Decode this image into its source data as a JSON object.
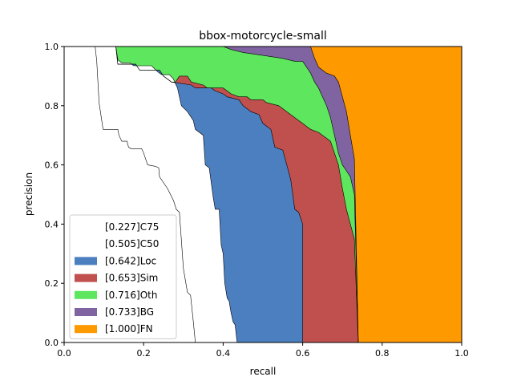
{
  "chart_data": {
    "type": "area",
    "title": "bbox-motorcycle-small",
    "xlabel": "recall",
    "ylabel": "precision",
    "xlim": [
      0,
      1
    ],
    "ylim": [
      0,
      1
    ],
    "xticks": [
      "0.0",
      "0.2",
      "0.4",
      "0.6",
      "0.8",
      "1.0"
    ],
    "yticks": [
      "0.0",
      "0.2",
      "0.4",
      "0.6",
      "0.8",
      "1.0"
    ],
    "grid": false,
    "legend_position": "lower-left",
    "series": [
      {
        "name": "[0.227]C75",
        "color": "#ffffff",
        "points": [
          [
            0,
            1
          ],
          [
            0.078,
            1
          ],
          [
            0.082,
            0.95
          ],
          [
            0.088,
            0.81
          ],
          [
            0.098,
            0.72
          ],
          [
            0.135,
            0.72
          ],
          [
            0.138,
            0.7
          ],
          [
            0.145,
            0.68
          ],
          [
            0.158,
            0.68
          ],
          [
            0.162,
            0.66
          ],
          [
            0.168,
            0.655
          ],
          [
            0.195,
            0.655
          ],
          [
            0.2,
            0.64
          ],
          [
            0.21,
            0.6
          ],
          [
            0.23,
            0.595
          ],
          [
            0.238,
            0.59
          ],
          [
            0.24,
            0.56
          ],
          [
            0.26,
            0.52
          ],
          [
            0.275,
            0.48
          ],
          [
            0.282,
            0.45
          ],
          [
            0.29,
            0.44
          ],
          [
            0.3,
            0.25
          ],
          [
            0.31,
            0.17
          ],
          [
            0.318,
            0.16
          ],
          [
            0.325,
            0.07
          ],
          [
            0.33,
            0
          ]
        ]
      },
      {
        "name": "[0.505]C50",
        "color": "#ffffff",
        "points": [
          [
            0,
            1
          ],
          [
            0.13,
            1
          ],
          [
            0.135,
            0.955
          ],
          [
            0.145,
            0.945
          ],
          [
            0.165,
            0.945
          ],
          [
            0.175,
            0.935
          ],
          [
            0.22,
            0.935
          ],
          [
            0.235,
            0.915
          ],
          [
            0.245,
            0.905
          ],
          [
            0.265,
            0.905
          ],
          [
            0.275,
            0.89
          ],
          [
            0.285,
            0.86
          ],
          [
            0.295,
            0.8
          ],
          [
            0.31,
            0.78
          ],
          [
            0.325,
            0.75
          ],
          [
            0.33,
            0.72
          ],
          [
            0.35,
            0.7
          ],
          [
            0.355,
            0.6
          ],
          [
            0.365,
            0.59
          ],
          [
            0.375,
            0.49
          ],
          [
            0.38,
            0.45
          ],
          [
            0.39,
            0.45
          ],
          [
            0.395,
            0.33
          ],
          [
            0.4,
            0.3
          ],
          [
            0.404,
            0.2
          ],
          [
            0.41,
            0.15
          ],
          [
            0.415,
            0.14
          ],
          [
            0.42,
            0.1
          ],
          [
            0.425,
            0.07
          ],
          [
            0.43,
            0.06
          ],
          [
            0.435,
            0
          ],
          [
            0.6,
            0
          ]
        ]
      },
      {
        "name": "[0.642]Loc",
        "color": "#4c7fbf",
        "points": [
          [
            0,
            1
          ],
          [
            0.13,
            1
          ],
          [
            0.135,
            0.94
          ],
          [
            0.18,
            0.94
          ],
          [
            0.19,
            0.92
          ],
          [
            0.24,
            0.92
          ],
          [
            0.25,
            0.9
          ],
          [
            0.27,
            0.88
          ],
          [
            0.32,
            0.87
          ],
          [
            0.33,
            0.86
          ],
          [
            0.37,
            0.86
          ],
          [
            0.38,
            0.85
          ],
          [
            0.4,
            0.84
          ],
          [
            0.41,
            0.83
          ],
          [
            0.44,
            0.82
          ],
          [
            0.45,
            0.8
          ],
          [
            0.47,
            0.78
          ],
          [
            0.49,
            0.77
          ],
          [
            0.5,
            0.74
          ],
          [
            0.52,
            0.72
          ],
          [
            0.53,
            0.66
          ],
          [
            0.55,
            0.65
          ],
          [
            0.56,
            0.6
          ],
          [
            0.57,
            0.55
          ],
          [
            0.58,
            0.45
          ],
          [
            0.59,
            0.44
          ],
          [
            0.6,
            0.4
          ],
          [
            0.6,
            0
          ]
        ]
      },
      {
        "name": "[0.653]Sim",
        "color": "#c0504d",
        "points": [
          [
            0,
            1
          ],
          [
            0.13,
            1
          ],
          [
            0.135,
            0.94
          ],
          [
            0.18,
            0.94
          ],
          [
            0.19,
            0.92
          ],
          [
            0.24,
            0.92
          ],
          [
            0.25,
            0.9
          ],
          [
            0.27,
            0.88
          ],
          [
            0.35,
            0.87
          ],
          [
            0.37,
            0.86
          ],
          [
            0.4,
            0.85
          ],
          [
            0.55,
            0.84
          ],
          [
            0.58,
            0.83
          ],
          [
            0.6,
            0.8
          ],
          [
            0.62,
            0.73
          ],
          [
            0.64,
            0.7
          ],
          [
            0.66,
            0.66
          ],
          [
            0.68,
            0.58
          ],
          [
            0.69,
            0.52
          ],
          [
            0.7,
            0.46
          ],
          [
            0.71,
            0.42
          ],
          [
            0.72,
            0.4
          ],
          [
            0.73,
            0.35
          ],
          [
            0.74,
            0
          ]
        ]
      },
      {
        "name": "[0.716]Oth",
        "color": "#5ee65e",
        "points": [
          [
            0,
            1
          ],
          [
            0.13,
            1
          ],
          [
            0.135,
            0.94
          ],
          [
            0.18,
            0.94
          ],
          [
            0.19,
            0.92
          ],
          [
            0.24,
            0.92
          ],
          [
            0.25,
            0.9
          ],
          [
            0.27,
            0.88
          ],
          [
            0.35,
            0.87
          ],
          [
            0.37,
            0.86
          ],
          [
            0.4,
            0.85
          ],
          [
            0.55,
            0.84
          ],
          [
            0.58,
            0.83
          ],
          [
            0.6,
            0.8
          ],
          [
            0.62,
            0.73
          ],
          [
            0.64,
            0.7
          ],
          [
            0.66,
            0.66
          ],
          [
            0.68,
            0.58
          ],
          [
            0.69,
            0.52
          ],
          [
            0.7,
            0.46
          ],
          [
            0.71,
            0.42
          ],
          [
            0.72,
            0.4
          ],
          [
            0.73,
            0.35
          ],
          [
            0.74,
            0
          ]
        ]
      },
      {
        "name": "[0.733]BG",
        "color": "#8064a2",
        "points": [
          [
            0,
            1
          ],
          [
            0.62,
            1
          ],
          [
            0.63,
            0.96
          ],
          [
            0.64,
            0.93
          ],
          [
            0.65,
            0.92
          ],
          [
            0.66,
            0.91
          ],
          [
            0.68,
            0.9
          ],
          [
            0.69,
            0.88
          ],
          [
            0.7,
            0.83
          ],
          [
            0.71,
            0.78
          ],
          [
            0.72,
            0.7
          ],
          [
            0.73,
            0.62
          ],
          [
            0.74,
            0
          ]
        ]
      },
      {
        "name": "[1.000]FN",
        "color": "#ff9900",
        "points": [
          [
            0,
            1
          ],
          [
            1,
            1
          ]
        ]
      }
    ],
    "bands": [
      {
        "series": "[0.642]Loc",
        "upper": [
          [
            0.13,
            1
          ],
          [
            0.135,
            0.94
          ],
          [
            0.18,
            0.94
          ],
          [
            0.19,
            0.92
          ],
          [
            0.24,
            0.92
          ],
          [
            0.25,
            0.9
          ],
          [
            0.27,
            0.88
          ],
          [
            0.32,
            0.87
          ],
          [
            0.33,
            0.86
          ],
          [
            0.37,
            0.86
          ],
          [
            0.38,
            0.85
          ],
          [
            0.4,
            0.84
          ],
          [
            0.41,
            0.83
          ],
          [
            0.44,
            0.82
          ],
          [
            0.45,
            0.8
          ],
          [
            0.47,
            0.78
          ],
          [
            0.49,
            0.77
          ],
          [
            0.5,
            0.74
          ],
          [
            0.52,
            0.72
          ],
          [
            0.53,
            0.66
          ],
          [
            0.55,
            0.65
          ],
          [
            0.56,
            0.6
          ],
          [
            0.57,
            0.55
          ],
          [
            0.58,
            0.45
          ],
          [
            0.59,
            0.44
          ],
          [
            0.6,
            0.4
          ],
          [
            0.6,
            0
          ]
        ],
        "outer": [
          [
            0.13,
            1
          ],
          [
            0.135,
            0.94
          ],
          [
            0.18,
            0.94
          ],
          [
            0.19,
            0.92
          ],
          [
            0.24,
            0.92
          ],
          [
            0.25,
            0.9
          ],
          [
            0.27,
            0.88
          ],
          [
            0.28,
            0.88
          ],
          [
            0.29,
            0.9
          ],
          [
            0.31,
            0.9
          ],
          [
            0.32,
            0.88
          ],
          [
            0.35,
            0.87
          ],
          [
            0.36,
            0.86
          ],
          [
            0.4,
            0.86
          ],
          [
            0.42,
            0.84
          ],
          [
            0.44,
            0.83
          ],
          [
            0.46,
            0.83
          ],
          [
            0.47,
            0.82
          ],
          [
            0.5,
            0.82
          ],
          [
            0.51,
            0.81
          ],
          [
            0.54,
            0.8
          ],
          [
            0.56,
            0.78
          ],
          [
            0.58,
            0.76
          ],
          [
            0.6,
            0.74
          ],
          [
            0.62,
            0.72
          ],
          [
            0.64,
            0.71
          ],
          [
            0.65,
            0.7
          ],
          [
            0.66,
            0.69
          ],
          [
            0.67,
            0.68
          ],
          [
            0.68,
            0.64
          ],
          [
            0.69,
            0.6
          ],
          [
            0.7,
            0.52
          ],
          [
            0.71,
            0.45
          ],
          [
            0.72,
            0.4
          ],
          [
            0.73,
            0.35
          ],
          [
            0.74,
            0
          ]
        ]
      }
    ]
  },
  "legend": {
    "items": [
      {
        "label": "[0.227]C75",
        "color": "#ffffff"
      },
      {
        "label": "[0.505]C50",
        "color": "#ffffff"
      },
      {
        "label": "[0.642]Loc",
        "color": "#4c7fbf"
      },
      {
        "label": "[0.653]Sim",
        "color": "#c0504d"
      },
      {
        "label": "[0.716]Oth",
        "color": "#5ee65e"
      },
      {
        "label": "[0.733]BG",
        "color": "#8064a2"
      },
      {
        "label": "[1.000]FN",
        "color": "#ff9900"
      }
    ]
  }
}
